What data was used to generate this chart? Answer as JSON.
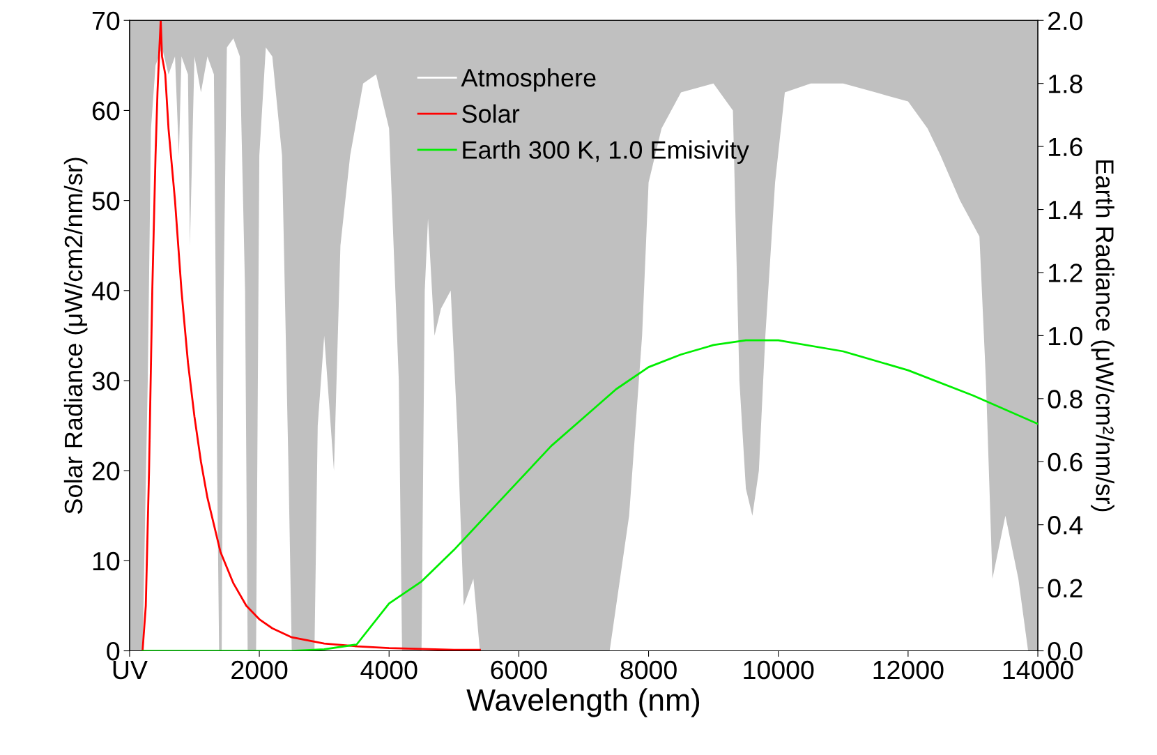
{
  "chart_data": {
    "type": "line",
    "xlabel": "Wavelength (nm)",
    "ylabel": "Solar Radiance (μW/cm2/nm/sr)",
    "y2label": "Earth Radiance (μW/cm²/nm/sr)",
    "xlim": [
      0,
      14000
    ],
    "xticks": [
      {
        "value": 0,
        "label": "UV"
      },
      2000,
      4000,
      6000,
      8000,
      10000,
      12000,
      14000
    ],
    "ylim": [
      0,
      70
    ],
    "yticks": [
      0,
      10,
      20,
      30,
      40,
      50,
      60,
      70
    ],
    "y2lim": [
      0,
      2
    ],
    "y2ticks": [
      {
        "value": 0,
        "label": "0.0"
      },
      0.2,
      0.4,
      0.6,
      0.8,
      {
        "value": 1,
        "label": "1.0"
      },
      1.2,
      1.4,
      1.6,
      1.8,
      {
        "value": 2,
        "label": "2.0"
      }
    ],
    "legend": "top",
    "grid": false,
    "bands": [
      {
        "axis": "y",
        "from": 0,
        "to": 70,
        "color": "#c0c0c0"
      }
    ],
    "series": [
      {
        "name": "Atmosphere",
        "type": "area",
        "color": "#ffffff",
        "x": [
          0,
          200,
          280,
          330,
          400,
          500,
          600,
          700,
          760,
          800,
          900,
          930,
          1000,
          1100,
          1200,
          1300,
          1350,
          1380,
          1420,
          1450,
          1500,
          1600,
          1700,
          1780,
          1820,
          1950,
          2000,
          2100,
          2200,
          2350,
          2450,
          2500,
          2850,
          2900,
          3000,
          3150,
          3250,
          3400,
          3600,
          3800,
          4000,
          4150,
          4200,
          4500,
          4550,
          4600,
          4700,
          4800,
          4950,
          5050,
          5150,
          5300,
          5400,
          7400,
          7500,
          7700,
          7900,
          8000,
          8200,
          8500,
          9000,
          9300,
          9400,
          9500,
          9600,
          9700,
          9800,
          9950,
          10100,
          10500,
          11000,
          11500,
          12000,
          12300,
          12500,
          12800,
          13100,
          13200,
          13300,
          13500,
          13700,
          13850,
          14000
        ],
        "values": [
          0,
          0,
          30,
          58,
          65,
          67,
          64,
          66,
          55,
          66,
          64,
          45,
          66,
          62,
          66,
          64,
          20,
          0,
          0,
          40,
          67,
          68,
          66,
          40,
          0,
          0,
          55,
          67,
          66,
          55,
          20,
          0,
          0,
          25,
          35,
          20,
          45,
          55,
          63,
          64,
          58,
          30,
          0,
          0,
          40,
          48,
          35,
          38,
          40,
          25,
          5,
          8,
          0,
          0,
          5,
          15,
          35,
          52,
          58,
          62,
          63,
          60,
          30,
          18,
          15,
          20,
          35,
          52,
          62,
          63,
          63,
          62,
          61,
          58,
          55,
          50,
          46,
          30,
          8,
          15,
          8,
          0,
          0
        ]
      },
      {
        "name": "Solar",
        "color": "#ff0000",
        "x": [
          200,
          250,
          300,
          350,
          400,
          430,
          460,
          480,
          500,
          550,
          600,
          700,
          800,
          900,
          1000,
          1100,
          1200,
          1300,
          1400,
          1600,
          1800,
          2000,
          2200,
          2500,
          3000,
          3500,
          4000,
          4500,
          5000,
          5400
        ],
        "values": [
          0,
          5,
          20,
          40,
          55,
          62,
          67,
          70,
          66,
          64,
          58,
          50,
          40,
          32,
          26,
          21,
          17,
          14,
          11,
          7.5,
          5,
          3.5,
          2.5,
          1.5,
          0.8,
          0.5,
          0.3,
          0.2,
          0.1,
          0.1
        ]
      },
      {
        "name": "Earth 300 K, 1.0 Emisivity",
        "type": "line",
        "axis": "y2",
        "color": "#00ee00",
        "x": [
          200,
          2500,
          3000,
          3500,
          4000,
          4500,
          5000,
          5500,
          6000,
          6500,
          7000,
          7500,
          8000,
          8500,
          9000,
          9500,
          10000,
          11000,
          12000,
          13000,
          14000
        ],
        "values": [
          0,
          0,
          0.005,
          0.02,
          0.15,
          0.22,
          0.32,
          0.43,
          0.54,
          0.65,
          0.74,
          0.83,
          0.9,
          0.94,
          0.97,
          0.985,
          0.985,
          0.95,
          0.89,
          0.81,
          0.72
        ]
      }
    ]
  }
}
